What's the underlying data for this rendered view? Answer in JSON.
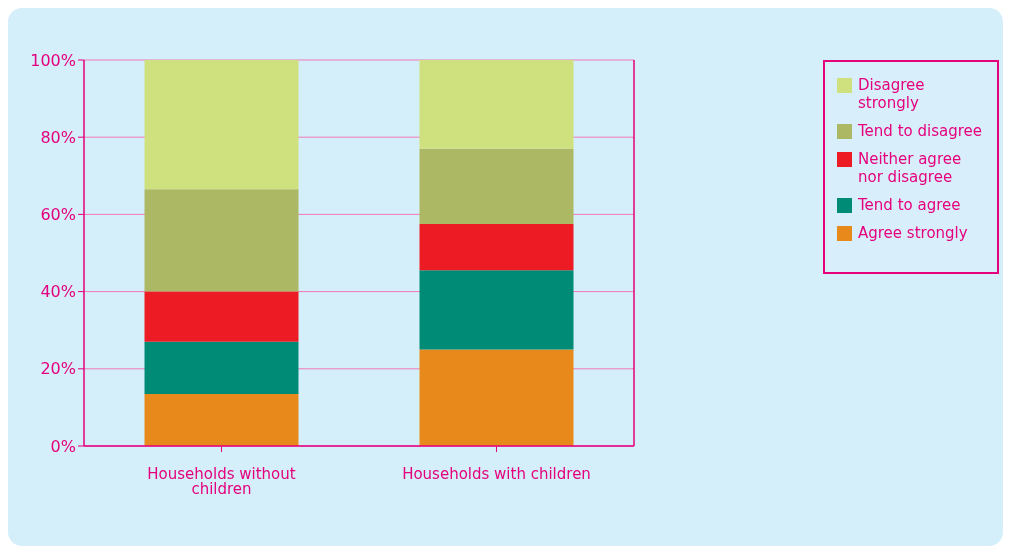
{
  "chart_data": {
    "type": "bar",
    "stacked": true,
    "categories": [
      "Households without children",
      "Households with children"
    ],
    "series": [
      {
        "name": "Agree strongly",
        "color": "#e8891c",
        "values": [
          13.5,
          25
        ]
      },
      {
        "name": "Tend to agree",
        "color": "#008b76",
        "values": [
          13.5,
          20.5
        ]
      },
      {
        "name": "Neither agree nor disagree",
        "color": "#ed1c24",
        "values": [
          13,
          12
        ]
      },
      {
        "name": "Tend to disagree",
        "color": "#adb865",
        "values": [
          26.5,
          19.5
        ]
      },
      {
        "name": "Disagree strongly",
        "color": "#cfe07f",
        "values": [
          33.5,
          23
        ]
      }
    ],
    "ylim": [
      0,
      100
    ],
    "yticks": [
      {
        "value": 0,
        "label": "0%"
      },
      {
        "value": 20,
        "label": "20%"
      },
      {
        "value": 40,
        "label": "40%"
      },
      {
        "value": 60,
        "label": "60%"
      },
      {
        "value": 80,
        "label": "80%"
      },
      {
        "value": 100,
        "label": "100%"
      }
    ],
    "grid": "y",
    "legend": "right"
  }
}
